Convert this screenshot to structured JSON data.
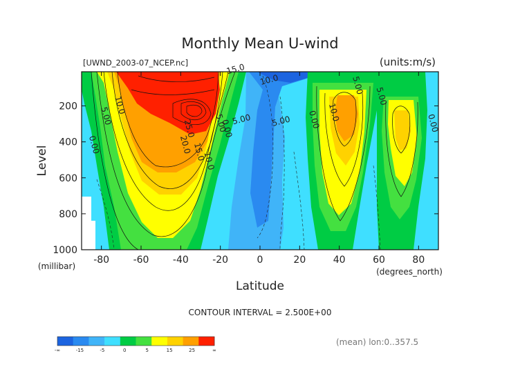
{
  "chart_data": {
    "type": "contour",
    "title": "Monthly Mean U-wind",
    "subtitle_left": "[UWND_2003-07_NCEP.nc]",
    "subtitle_right": "(units:m/s)",
    "xlabel": "Latitude",
    "xunit": "(degrees_north)",
    "ylabel": "Level",
    "yunit": "(millibar)",
    "xlim": [
      -90,
      90
    ],
    "ylim": [
      1000,
      10
    ],
    "x_ticks": [
      -80,
      -60,
      -40,
      -20,
      0,
      20,
      40,
      60,
      80
    ],
    "x_tick_labels": [
      "-80",
      "-60",
      "-40",
      "-20",
      "0",
      "20",
      "40",
      "60",
      "80"
    ],
    "y_ticks": [
      200,
      400,
      600,
      800,
      1000
    ],
    "y_tick_labels": [
      "200",
      "400",
      "600",
      "800",
      "1000"
    ],
    "contour_interval_text": "CONTOUR INTERVAL = 2.500E+00",
    "footer_right": "(mean) lon:0..357.5",
    "contour_labels": [
      {
        "text": "15.0",
        "lat": -12,
        "lev": 10
      },
      {
        "text": "10.0",
        "lat": 5,
        "lev": 70
      },
      {
        "text": "5.00",
        "lat": 48,
        "lev": 90
      },
      {
        "text": "10.0",
        "lat": -72,
        "lev": 200
      },
      {
        "text": "5.00",
        "lat": -79,
        "lev": 260
      },
      {
        "text": "0.00",
        "lat": -85,
        "lev": 420
      },
      {
        "text": "25.0",
        "lat": -37,
        "lev": 330
      },
      {
        "text": "20.0",
        "lat": -39,
        "lev": 420
      },
      {
        "text": "15.0",
        "lat": -32,
        "lev": 460
      },
      {
        "text": "10.0",
        "lat": -27,
        "lev": 510
      },
      {
        "text": "5.00",
        "lat": -21,
        "lev": 300
      },
      {
        "text": "0.00",
        "lat": -18,
        "lev": 330
      },
      {
        "text": "5.00",
        "lat": -9,
        "lev": 290
      },
      {
        "text": "5.00",
        "lat": 11,
        "lev": 300
      },
      {
        "text": "0.00",
        "lat": 26,
        "lev": 280
      },
      {
        "text": "10.0",
        "lat": 36,
        "lev": 240
      },
      {
        "text": "5.00",
        "lat": 60,
        "lev": 150
      },
      {
        "text": "0.00",
        "lat": 86,
        "lev": 300
      }
    ],
    "colorbar": {
      "colors": [
        "#1c64e0",
        "#2a8af0",
        "#40b4f8",
        "#3fdfff",
        "#00cc44",
        "#44e040",
        "#ffff00",
        "#ffd200",
        "#ffa000",
        "#ff2000"
      ],
      "labels": [
        "-∞",
        "-15",
        "-5",
        "0",
        "5",
        "15",
        "25",
        "∞"
      ]
    }
  }
}
